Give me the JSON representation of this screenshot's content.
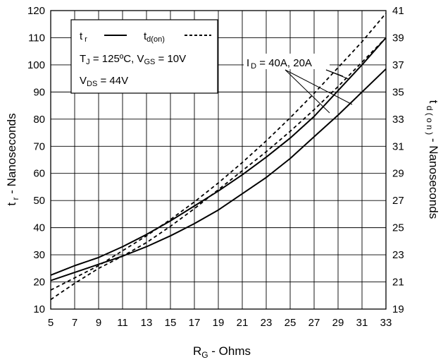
{
  "chart_data": {
    "type": "line",
    "x": [
      5,
      7,
      9,
      11,
      13,
      15,
      17,
      19,
      21,
      23,
      25,
      27,
      29,
      31,
      33
    ],
    "xlim": [
      5,
      33
    ],
    "xticks": [
      "5",
      "7",
      "9",
      "11",
      "13",
      "15",
      "17",
      "19",
      "21",
      "23",
      "25",
      "27",
      "29",
      "31",
      "33"
    ],
    "ylim_left": [
      10,
      120
    ],
    "yticks_left": [
      "10",
      "20",
      "30",
      "40",
      "50",
      "60",
      "70",
      "80",
      "90",
      "100",
      "110",
      "120"
    ],
    "ylim_right": [
      19,
      41
    ],
    "yticks_right": [
      "19",
      "21",
      "23",
      "25",
      "27",
      "29",
      "31",
      "33",
      "35",
      "37",
      "39",
      "41"
    ],
    "xlabel": {
      "main": "R",
      "sub": "G",
      "rest": " - Ohms"
    },
    "ylabel_left": {
      "main": "t",
      "sub": " r",
      "rest": " - Nanoseconds"
    },
    "ylabel_right": {
      "main": "t",
      "sub": " d ( o n )",
      "rest": " - Nanoseconds"
    },
    "grid": true,
    "legend": {
      "placement": "top-left",
      "tr": {
        "main": "t",
        "sub": "r"
      },
      "tdon": {
        "main": "t",
        "sub": "d(on)"
      },
      "line2": {
        "tj": "T",
        "tj_sub": "J",
        "tj_rest": " = 125ºC,  V",
        "vgs_sub": "GS",
        "vgs_rest": " = 10V"
      },
      "line3": {
        "vds": "V",
        "vds_sub": "DS",
        "vds_rest": " = 44V"
      }
    },
    "annotation": {
      "pre": "I",
      "sub": "D",
      "rest": " = 40A, 20A"
    },
    "series": [
      {
        "style": "solid",
        "axis": "left",
        "values": [
          22.5,
          26,
          29,
          33,
          37.5,
          42.5,
          48,
          53.5,
          59.5,
          66,
          73,
          81,
          90.5,
          100,
          110
        ]
      },
      {
        "style": "solid",
        "axis": "left",
        "values": [
          20.5,
          23.5,
          26.5,
          29.5,
          33,
          37,
          41.5,
          46.5,
          52.5,
          58.5,
          65.5,
          73.5,
          81.5,
          90,
          98.5
        ]
      },
      {
        "style": "dashed",
        "axis": "right",
        "values": [
          20.4,
          21.3,
          22.2,
          23.3,
          24.4,
          25.6,
          26.9,
          28.3,
          29.8,
          31.4,
          33.1,
          34.9,
          36.8,
          38.7,
          40.8
        ]
      },
      {
        "style": "dashed",
        "axis": "right",
        "values": [
          19.7,
          20.9,
          22.0,
          22.9,
          23.9,
          25.1,
          26.4,
          27.8,
          29.2,
          30.6,
          32.1,
          33.7,
          35.4,
          37.2,
          39.0
        ]
      }
    ],
    "colors": {
      "lines": "#000000",
      "grid": "#000000",
      "background": "#ffffff"
    }
  }
}
